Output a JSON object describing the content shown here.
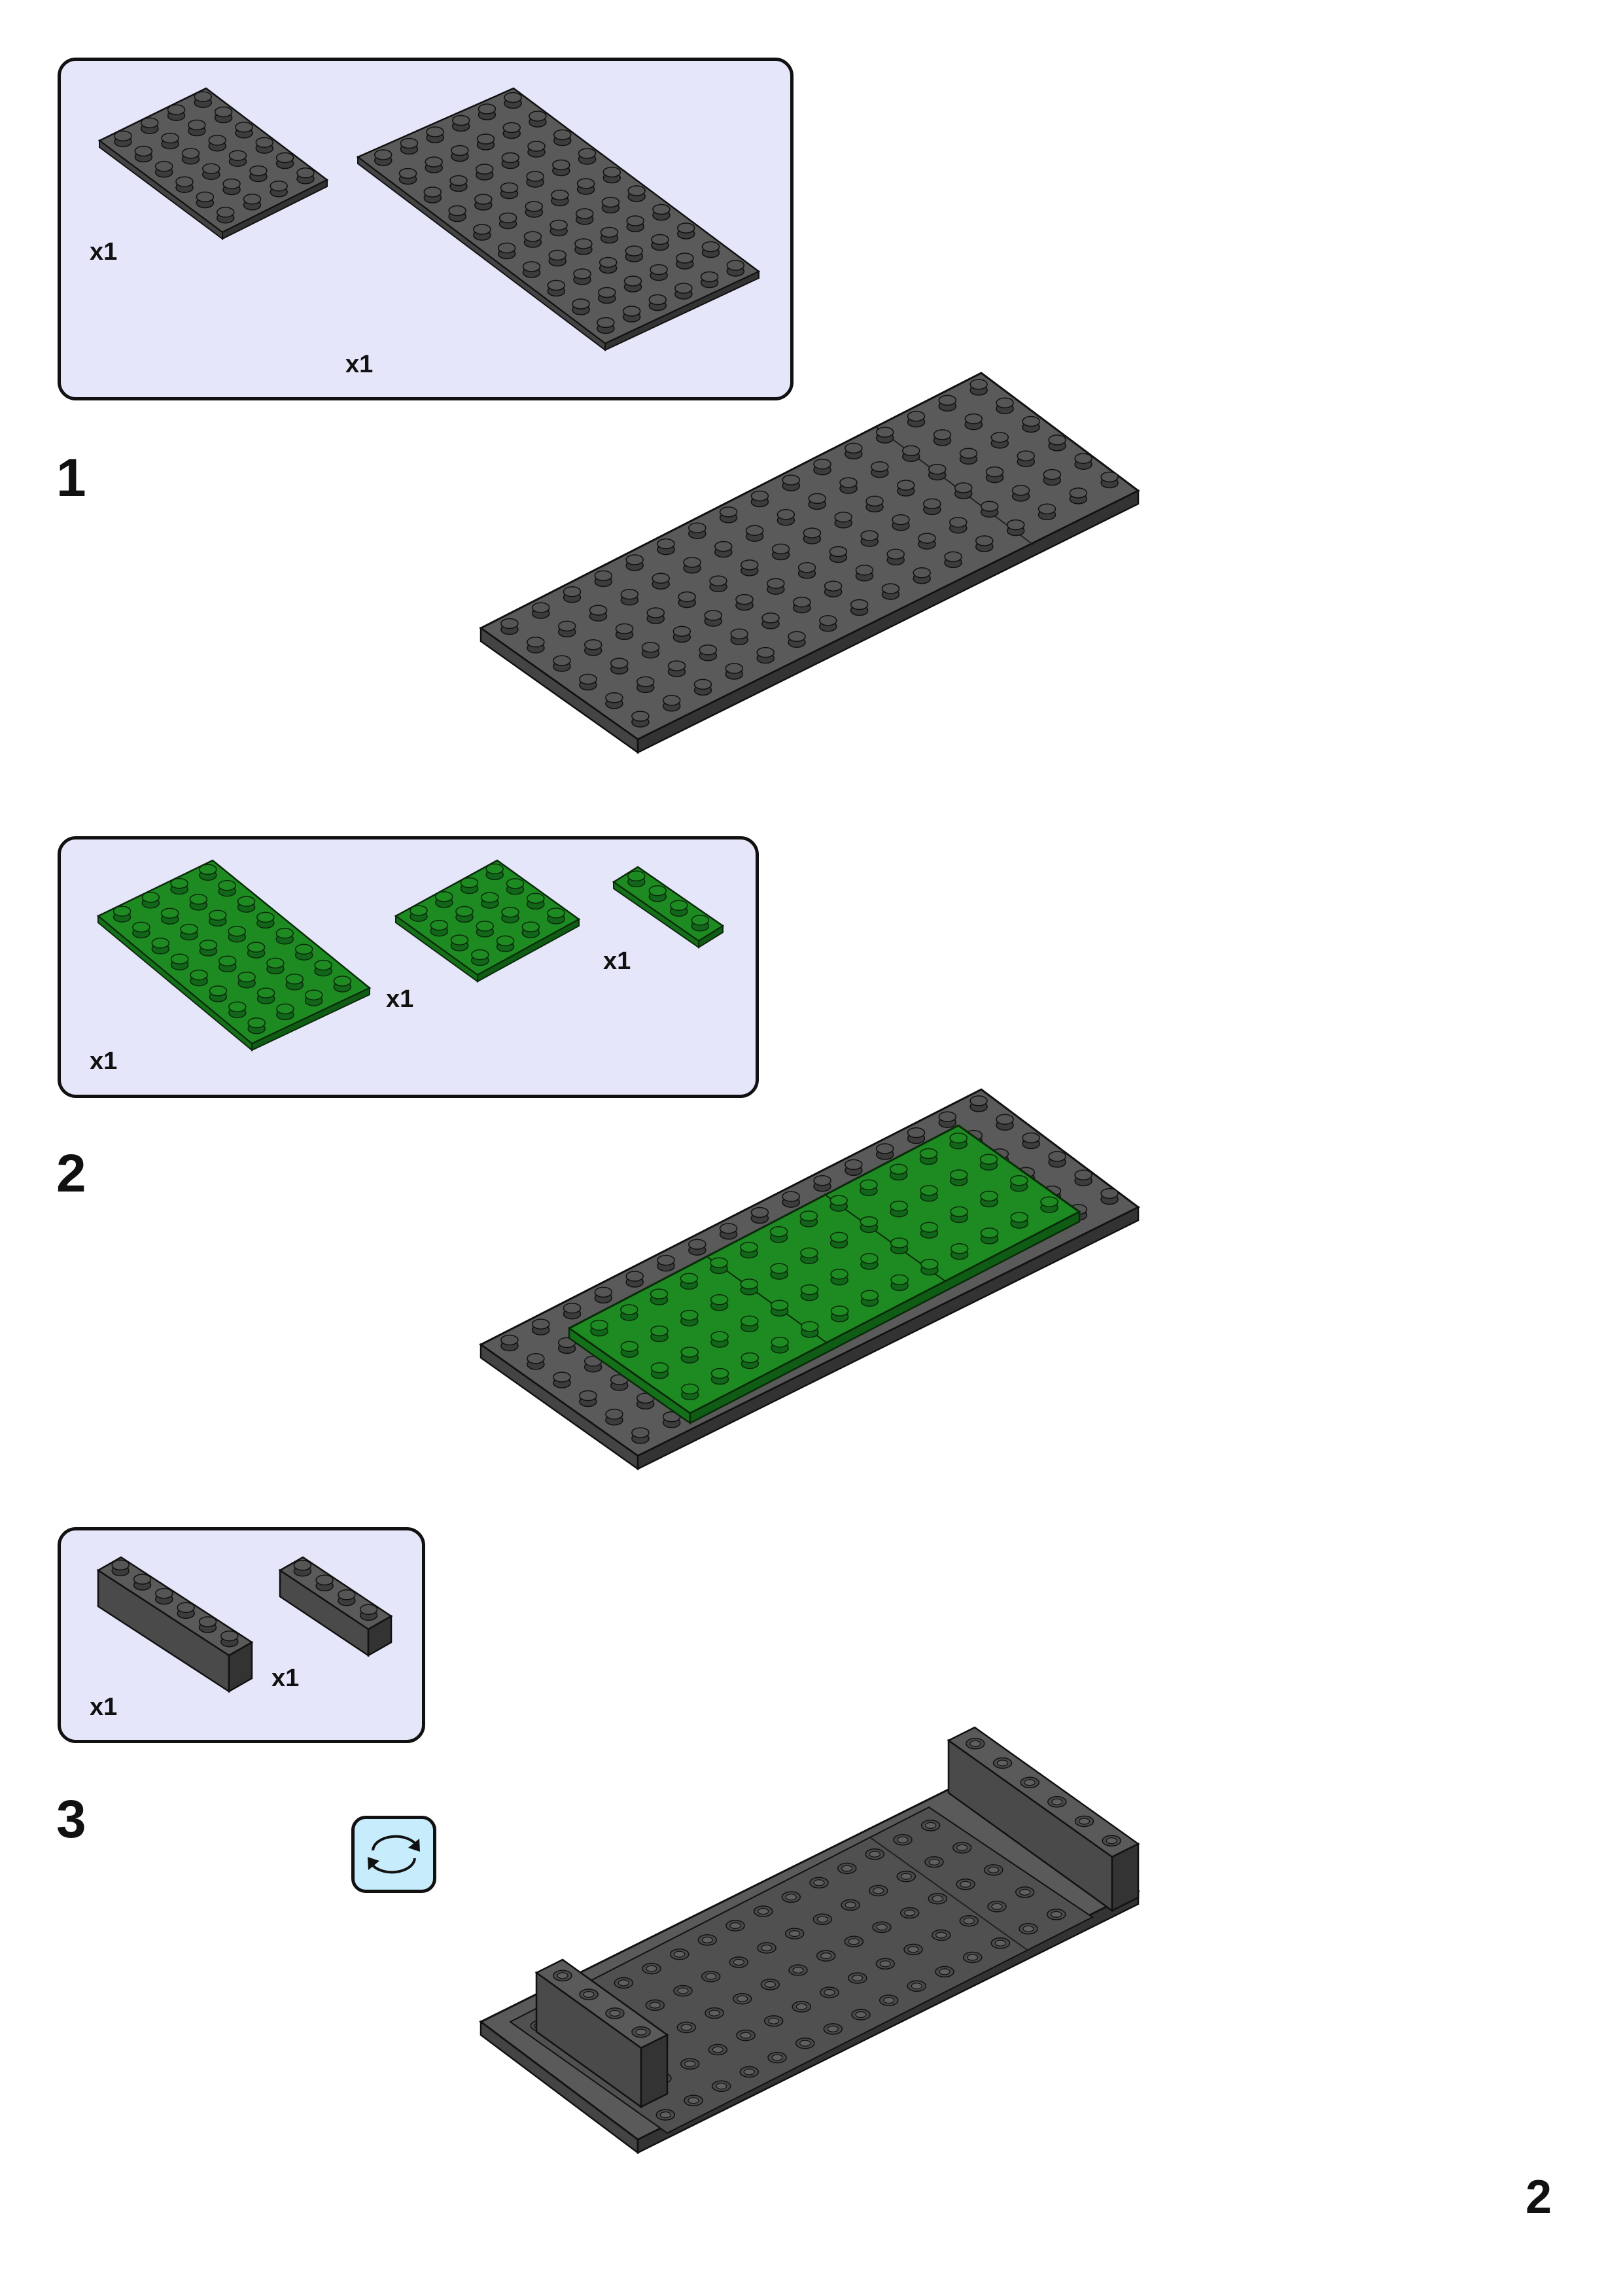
{
  "colors": {
    "dark_gray": "#5a5a5a",
    "green": "#1e8a22",
    "panel_bg": "#e6e6fa",
    "rotate_bg": "#c7ecfb",
    "outline": "#111111"
  },
  "steps": [
    {
      "number": "1",
      "parts": [
        {
          "quantity": "x1"
        },
        {
          "quantity": "x1"
        }
      ]
    },
    {
      "number": "2",
      "parts": [
        {
          "quantity": "x1"
        },
        {
          "quantity": "x1"
        },
        {
          "quantity": "x1"
        }
      ]
    },
    {
      "number": "3",
      "parts": [
        {
          "quantity": "x1"
        },
        {
          "quantity": "x1"
        }
      ],
      "rotate_icon": "rotate-model-icon"
    }
  ],
  "page_number": "2"
}
